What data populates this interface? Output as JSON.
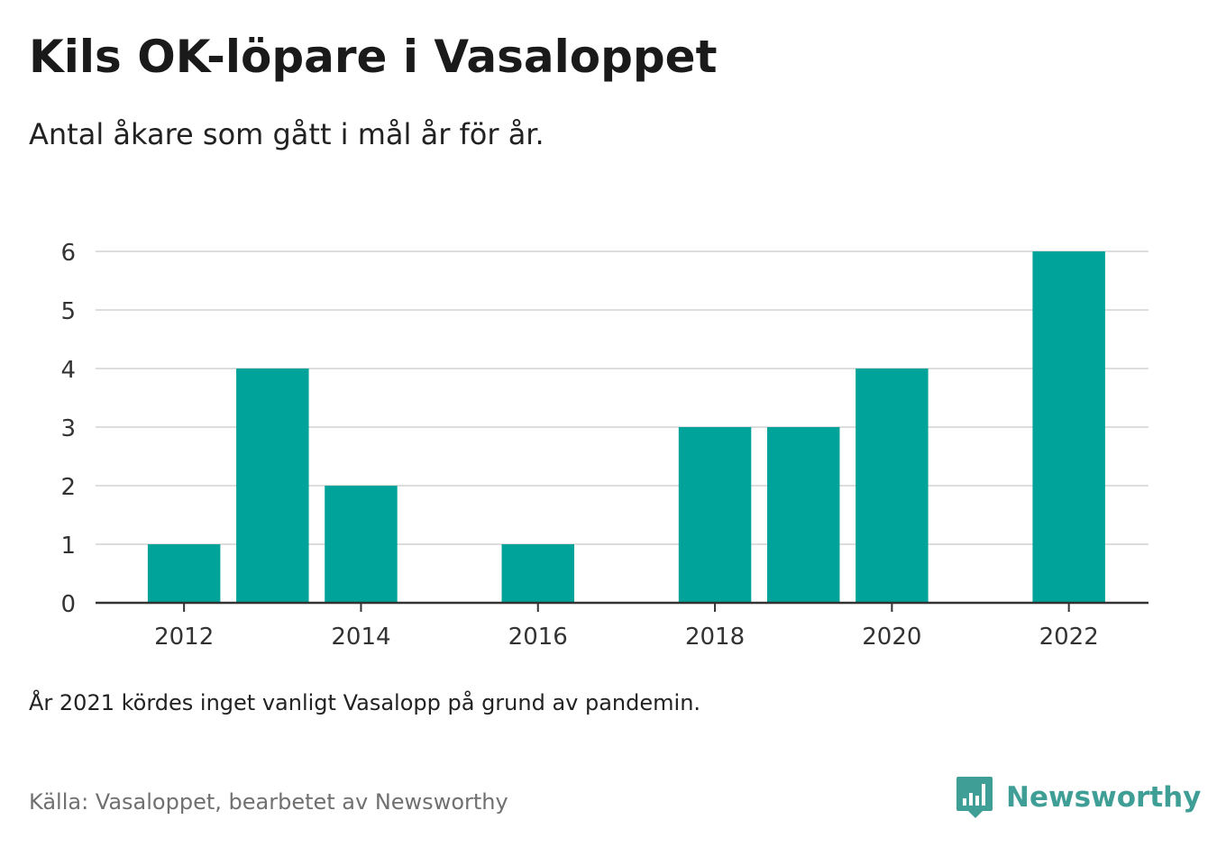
{
  "header": {
    "title": "Kils OK-löpare i Vasaloppet",
    "subtitle": "Antal åkare som gått i mål år för år."
  },
  "chart_data": {
    "type": "bar",
    "x": [
      2012,
      2013,
      2014,
      2016,
      2018,
      2019,
      2020,
      2022
    ],
    "values": [
      1,
      4,
      2,
      1,
      3,
      3,
      4,
      6
    ],
    "x_ticks": [
      "2012",
      "2014",
      "2016",
      "2018",
      "2020",
      "2022"
    ],
    "x_tick_values": [
      2012,
      2014,
      2016,
      2018,
      2020,
      2022
    ],
    "xlim": [
      2011,
      2022.9
    ],
    "y_ticks": [
      "0",
      "1",
      "2",
      "3",
      "4",
      "5",
      "6"
    ],
    "y_tick_values": [
      0,
      1,
      2,
      3,
      4,
      5,
      6
    ],
    "ylim": [
      0,
      6
    ],
    "grid": true,
    "bar_color": "#00a39a"
  },
  "footer": {
    "note": "År 2021 kördes inget vanligt Vasalopp på grund av pandemin.",
    "source": "Källa: Vasaloppet, bearbetet av Newsworthy",
    "logo_text": "Newsworthy",
    "logo_color": "#3f9e96"
  }
}
